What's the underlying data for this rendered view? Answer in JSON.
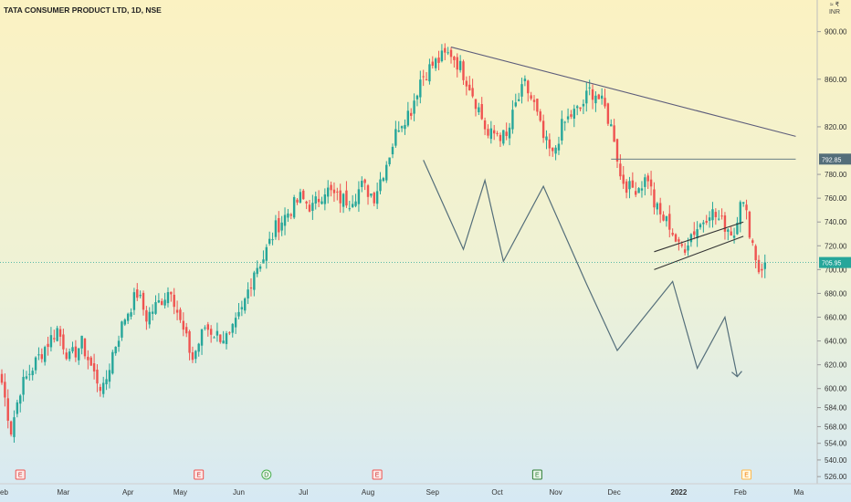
{
  "header": {
    "title": "TATA CONSUMER PRODUCT LTD, 1D, NSE",
    "currency_top": "≈ ₹",
    "currency": "INR"
  },
  "colors": {
    "up": "#26a69a",
    "down": "#ef5350",
    "drawing": "#546e7a",
    "trend": "#5c5c7a",
    "bg_top": "#fbf2c2",
    "bg_bottom": "#d8eaf3"
  },
  "chart_data": {
    "type": "candlestick",
    "title": "TATA CONSUMER PRODUCT LTD, 1D, NSE",
    "ylim": [
      520,
      912
    ],
    "y_ticks": [
      526,
      540,
      554,
      568,
      584,
      600,
      620,
      640,
      660,
      680,
      700,
      720,
      740,
      760,
      780,
      820,
      860,
      900
    ],
    "y_tick_labels": [
      "526.00",
      "540.00",
      "554.00",
      "568.00",
      "584.00",
      "600.00",
      "620.00",
      "640.00",
      "660.00",
      "680.00",
      "700.00",
      "720.00",
      "740.00",
      "760.00",
      "780.00",
      "820.00",
      "860.00",
      "900.00"
    ],
    "x_ticks": [
      {
        "label": "Feb",
        "idx": 0
      },
      {
        "label": "Mar",
        "idx": 20
      },
      {
        "label": "Apr",
        "idx": 41
      },
      {
        "label": "May",
        "idx": 58
      },
      {
        "label": "Jun",
        "idx": 77
      },
      {
        "label": "Jul",
        "idx": 98
      },
      {
        "label": "Aug",
        "idx": 119
      },
      {
        "label": "Sep",
        "idx": 140
      },
      {
        "label": "Oct",
        "idx": 161
      },
      {
        "label": "Nov",
        "idx": 180
      },
      {
        "label": "Dec",
        "idx": 199
      },
      {
        "label": "2022",
        "idx": 220,
        "bold": true
      },
      {
        "label": "Feb",
        "idx": 240
      },
      {
        "label": "Ma",
        "idx": 259
      }
    ],
    "price_labels": [
      {
        "value": 792.85,
        "label": "792.85",
        "style": "line"
      },
      {
        "value": 705.95,
        "label": "705.95",
        "style": "current"
      }
    ],
    "waypoints": [
      [
        0,
        605
      ],
      [
        3,
        565
      ],
      [
        6,
        600
      ],
      [
        10,
        618
      ],
      [
        14,
        635
      ],
      [
        18,
        650
      ],
      [
        22,
        625
      ],
      [
        26,
        638
      ],
      [
        30,
        612
      ],
      [
        33,
        598
      ],
      [
        36,
        630
      ],
      [
        40,
        660
      ],
      [
        44,
        680
      ],
      [
        47,
        660
      ],
      [
        51,
        672
      ],
      [
        55,
        685
      ],
      [
        58,
        655
      ],
      [
        62,
        625
      ],
      [
        66,
        652
      ],
      [
        70,
        645
      ],
      [
        74,
        642
      ],
      [
        78,
        665
      ],
      [
        82,
        700
      ],
      [
        85,
        710
      ],
      [
        89,
        735
      ],
      [
        93,
        748
      ],
      [
        97,
        760
      ],
      [
        101,
        752
      ],
      [
        105,
        768
      ],
      [
        109,
        760
      ],
      [
        113,
        758
      ],
      [
        117,
        770
      ],
      [
        121,
        762
      ],
      [
        125,
        790
      ],
      [
        129,
        822
      ],
      [
        133,
        835
      ],
      [
        136,
        860
      ],
      [
        140,
        872
      ],
      [
        143,
        878
      ],
      [
        146,
        882
      ],
      [
        149,
        870
      ],
      [
        152,
        855
      ],
      [
        155,
        835
      ],
      [
        158,
        812
      ],
      [
        161,
        815
      ],
      [
        164,
        810
      ],
      [
        167,
        838
      ],
      [
        170,
        855
      ],
      [
        173,
        838
      ],
      [
        176,
        810
      ],
      [
        179,
        795
      ],
      [
        182,
        820
      ],
      [
        185,
        830
      ],
      [
        188,
        835
      ],
      [
        191,
        850
      ],
      [
        193,
        848
      ],
      [
        196,
        835
      ],
      [
        199,
        812
      ],
      [
        201,
        778
      ],
      [
        204,
        768
      ],
      [
        207,
        770
      ],
      [
        210,
        778
      ],
      [
        212,
        755
      ],
      [
        214,
        745
      ],
      [
        217,
        738
      ],
      [
        220,
        718
      ],
      [
        222,
        720
      ],
      [
        224,
        730
      ],
      [
        227,
        738
      ],
      [
        230,
        750
      ],
      [
        233,
        742
      ],
      [
        236,
        735
      ],
      [
        238,
        730
      ],
      [
        240,
        762
      ],
      [
        242,
        745
      ],
      [
        244,
        722
      ],
      [
        246,
        700
      ],
      [
        247,
        703
      ],
      [
        248,
        706
      ]
    ],
    "trend_lines": [
      {
        "name": "resistance",
        "from": [
          146,
          887
        ],
        "to": [
          258,
          812
        ]
      },
      {
        "name": "horizontal",
        "from": [
          198,
          792.85
        ],
        "to": [
          258,
          792.85
        ]
      },
      {
        "name": "wedge-lower",
        "from": [
          212,
          700
        ],
        "to": [
          241,
          728
        ]
      },
      {
        "name": "wedge-upper",
        "from": [
          212,
          715
        ],
        "to": [
          241,
          740
        ]
      }
    ],
    "zigzag": [
      [
        137,
        792
      ],
      [
        150,
        717
      ],
      [
        157,
        775
      ],
      [
        163,
        707
      ],
      [
        176,
        770
      ],
      [
        190,
        688
      ],
      [
        200,
        632
      ],
      [
        218,
        690
      ],
      [
        226,
        617
      ],
      [
        235,
        660
      ],
      [
        239,
        610
      ]
    ],
    "events": [
      {
        "idx": 6,
        "label": "E",
        "kind": "earnings"
      },
      {
        "idx": 64,
        "label": "E",
        "kind": "earnings"
      },
      {
        "idx": 86,
        "label": "D",
        "kind": "dividend"
      },
      {
        "idx": 122,
        "label": "E",
        "kind": "earnings"
      },
      {
        "idx": 174,
        "label": "E",
        "kind": "earnings-current"
      },
      {
        "idx": 242,
        "label": "E",
        "kind": "earnings-future"
      }
    ]
  }
}
